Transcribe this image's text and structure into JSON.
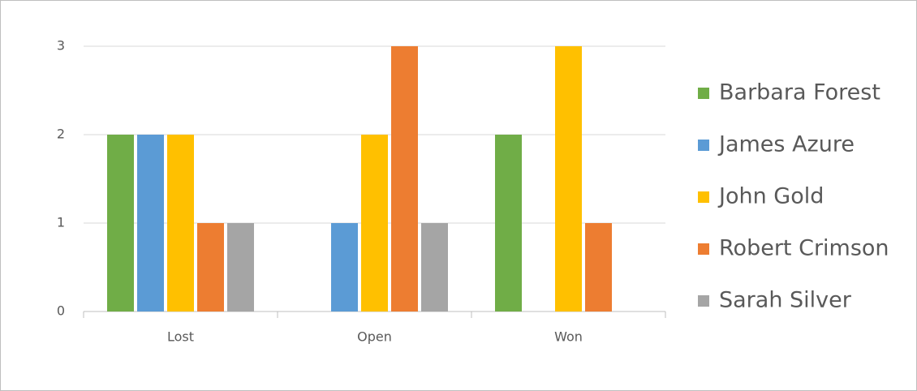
{
  "chart_data": {
    "type": "bar",
    "categories": [
      "Lost",
      "Open",
      "Won"
    ],
    "series": [
      {
        "name": "Barbara Forest",
        "color": "#70ad47",
        "values": [
          2,
          null,
          2
        ]
      },
      {
        "name": "James Azure",
        "color": "#5b9bd5",
        "values": [
          2,
          1,
          null
        ]
      },
      {
        "name": "John Gold",
        "color": "#ffc000",
        "values": [
          2,
          2,
          3
        ]
      },
      {
        "name": "Robert Crimson",
        "color": "#ed7d31",
        "values": [
          1,
          3,
          1
        ]
      },
      {
        "name": "Sarah Silver",
        "color": "#a5a5a5",
        "values": [
          1,
          1,
          null
        ]
      }
    ],
    "ylim": [
      0,
      3
    ],
    "yticks": [
      0,
      1,
      2,
      3
    ],
    "grid": true,
    "legend": "right"
  }
}
